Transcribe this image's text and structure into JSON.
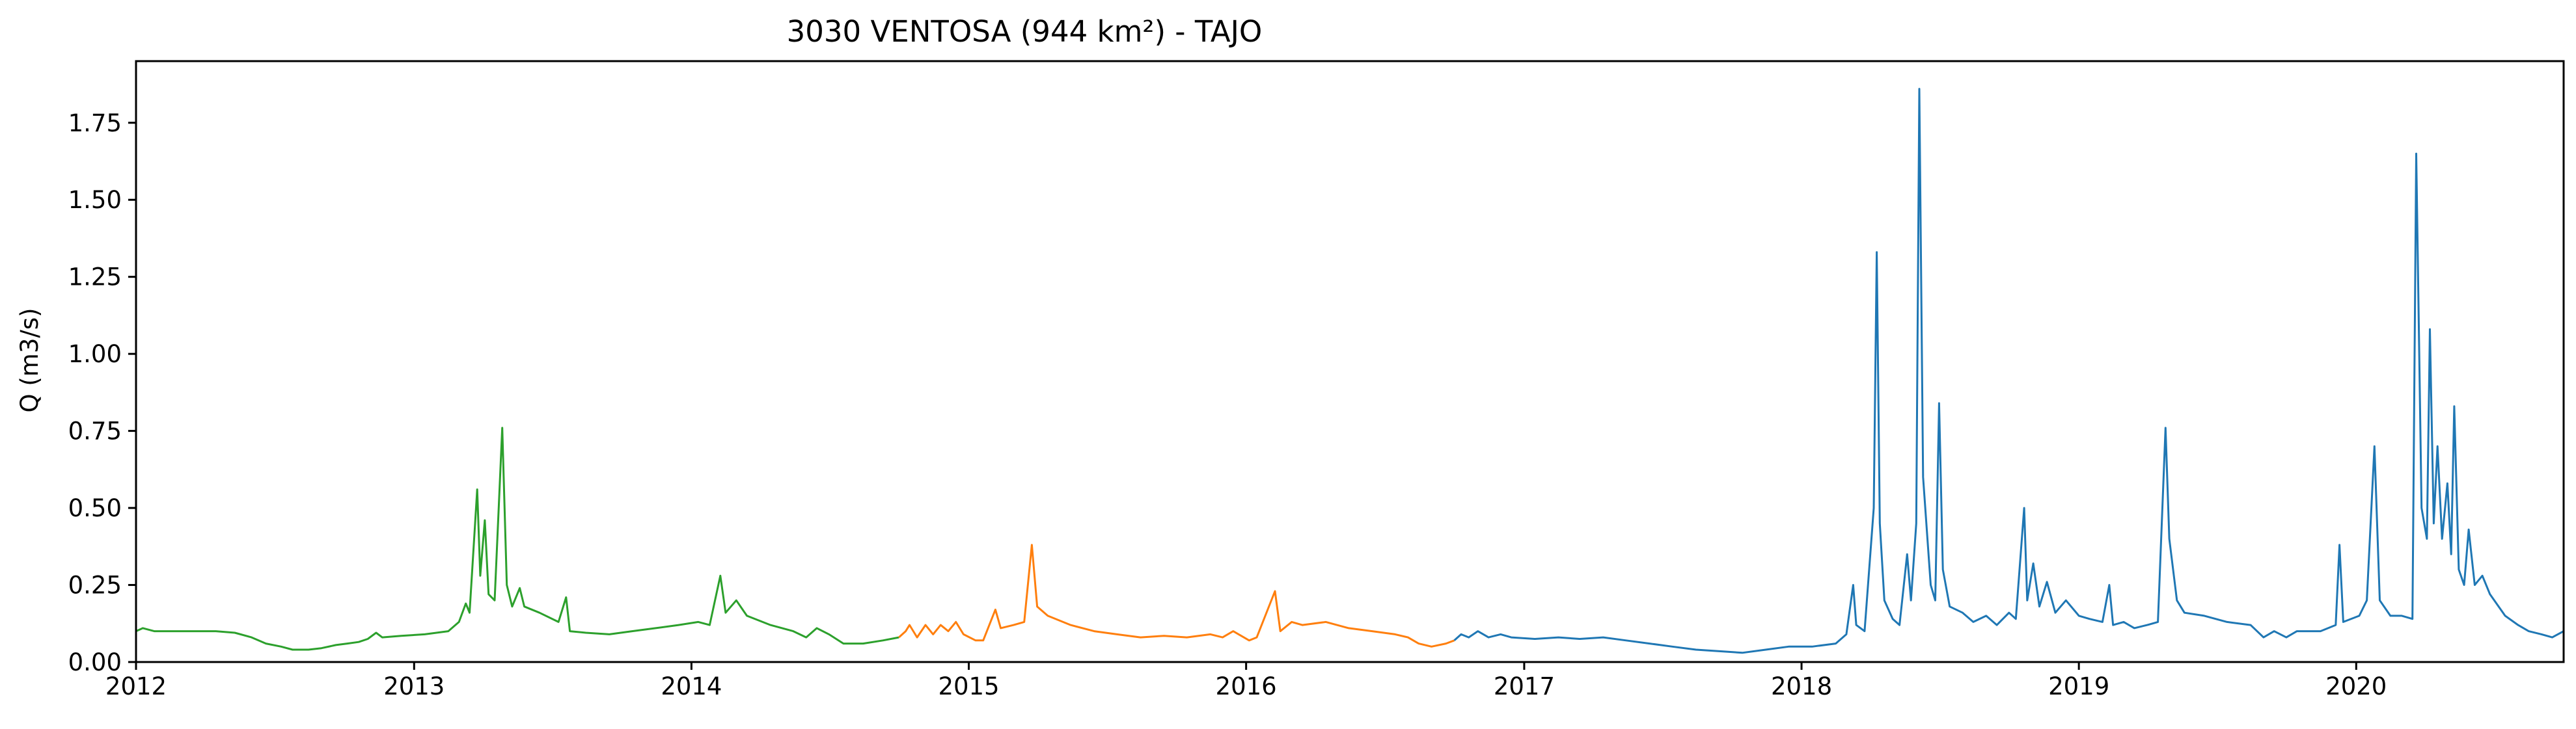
{
  "chart_data": {
    "type": "line",
    "title": "3030 VENTOSA (944 km²) - TAJO",
    "xlabel": "",
    "ylabel": "Q (m3/s)",
    "x_type": "date",
    "xlim": [
      "2012-01-01",
      "2020-09-30"
    ],
    "ylim": [
      0,
      1.95
    ],
    "x_ticks": [
      "2012",
      "2013",
      "2014",
      "2015",
      "2016",
      "2017",
      "2018",
      "2019",
      "2020"
    ],
    "y_ticks": [
      "0.00",
      "0.25",
      "0.50",
      "0.75",
      "1.00",
      "1.25",
      "1.50",
      "1.75"
    ],
    "grid": false,
    "legend": false,
    "series": [
      {
        "color": "#2ca02c",
        "points": [
          [
            "2012-01-01",
            0.1
          ],
          [
            "2012-01-10",
            0.11
          ],
          [
            "2012-01-25",
            0.1
          ],
          [
            "2012-02-15",
            0.1
          ],
          [
            "2012-03-15",
            0.1
          ],
          [
            "2012-04-15",
            0.1
          ],
          [
            "2012-05-10",
            0.095
          ],
          [
            "2012-06-01",
            0.08
          ],
          [
            "2012-06-20",
            0.06
          ],
          [
            "2012-07-10",
            0.05
          ],
          [
            "2012-07-25",
            0.04
          ],
          [
            "2012-08-15",
            0.04
          ],
          [
            "2012-09-01",
            0.045
          ],
          [
            "2012-09-20",
            0.055
          ],
          [
            "2012-10-05",
            0.06
          ],
          [
            "2012-10-20",
            0.065
          ],
          [
            "2012-11-01",
            0.075
          ],
          [
            "2012-11-12",
            0.095
          ],
          [
            "2012-11-20",
            0.08
          ],
          [
            "2012-12-15",
            0.085
          ],
          [
            "2013-01-15",
            0.09
          ],
          [
            "2013-02-15",
            0.1
          ],
          [
            "2013-03-01",
            0.13
          ],
          [
            "2013-03-10",
            0.19
          ],
          [
            "2013-03-15",
            0.16
          ],
          [
            "2013-03-25",
            0.56
          ],
          [
            "2013-03-29",
            0.28
          ],
          [
            "2013-04-04",
            0.46
          ],
          [
            "2013-04-09",
            0.22
          ],
          [
            "2013-04-17",
            0.2
          ],
          [
            "2013-04-27",
            0.76
          ],
          [
            "2013-05-03",
            0.25
          ],
          [
            "2013-05-10",
            0.18
          ],
          [
            "2013-05-20",
            0.24
          ],
          [
            "2013-05-26",
            0.18
          ],
          [
            "2013-06-15",
            0.16
          ],
          [
            "2013-07-10",
            0.13
          ],
          [
            "2013-07-20",
            0.21
          ],
          [
            "2013-07-25",
            0.1
          ],
          [
            "2013-08-15",
            0.095
          ],
          [
            "2013-09-15",
            0.09
          ],
          [
            "2013-10-15",
            0.1
          ],
          [
            "2013-11-15",
            0.11
          ],
          [
            "2013-12-15",
            0.12
          ],
          [
            "2014-01-10",
            0.13
          ],
          [
            "2014-01-25",
            0.12
          ],
          [
            "2014-02-08",
            0.28
          ],
          [
            "2014-02-15",
            0.16
          ],
          [
            "2014-03-01",
            0.2
          ],
          [
            "2014-03-15",
            0.15
          ],
          [
            "2014-04-15",
            0.12
          ],
          [
            "2014-05-15",
            0.1
          ],
          [
            "2014-06-01",
            0.08
          ],
          [
            "2014-06-15",
            0.11
          ],
          [
            "2014-07-01",
            0.09
          ],
          [
            "2014-07-20",
            0.06
          ],
          [
            "2014-08-15",
            0.06
          ],
          [
            "2014-09-10",
            0.07
          ],
          [
            "2014-10-01",
            0.08
          ]
        ]
      },
      {
        "color": "#ff7f0e",
        "points": [
          [
            "2014-10-01",
            0.08
          ],
          [
            "2014-10-10",
            0.1
          ],
          [
            "2014-10-15",
            0.12
          ],
          [
            "2014-10-25",
            0.08
          ],
          [
            "2014-11-05",
            0.12
          ],
          [
            "2014-11-15",
            0.09
          ],
          [
            "2014-11-25",
            0.12
          ],
          [
            "2014-12-05",
            0.1
          ],
          [
            "2014-12-15",
            0.13
          ],
          [
            "2014-12-25",
            0.09
          ],
          [
            "2015-01-10",
            0.07
          ],
          [
            "2015-01-20",
            0.07
          ],
          [
            "2015-02-05",
            0.17
          ],
          [
            "2015-02-12",
            0.11
          ],
          [
            "2015-03-01",
            0.12
          ],
          [
            "2015-03-15",
            0.13
          ],
          [
            "2015-03-25",
            0.38
          ],
          [
            "2015-04-01",
            0.18
          ],
          [
            "2015-04-15",
            0.15
          ],
          [
            "2015-05-15",
            0.12
          ],
          [
            "2015-06-15",
            0.1
          ],
          [
            "2015-07-15",
            0.09
          ],
          [
            "2015-08-15",
            0.08
          ],
          [
            "2015-09-15",
            0.085
          ],
          [
            "2015-10-15",
            0.08
          ],
          [
            "2015-11-15",
            0.09
          ],
          [
            "2015-12-01",
            0.08
          ],
          [
            "2015-12-15",
            0.1
          ],
          [
            "2016-01-05",
            0.07
          ],
          [
            "2016-01-15",
            0.08
          ],
          [
            "2016-02-08",
            0.23
          ],
          [
            "2016-02-15",
            0.1
          ],
          [
            "2016-03-01",
            0.13
          ],
          [
            "2016-03-15",
            0.12
          ],
          [
            "2016-04-15",
            0.13
          ],
          [
            "2016-05-15",
            0.11
          ],
          [
            "2016-06-15",
            0.1
          ],
          [
            "2016-07-15",
            0.09
          ],
          [
            "2016-08-01",
            0.08
          ],
          [
            "2016-08-15",
            0.06
          ],
          [
            "2016-09-01",
            0.05
          ],
          [
            "2016-09-20",
            0.06
          ],
          [
            "2016-10-01",
            0.07
          ]
        ]
      },
      {
        "color": "#1f77b4",
        "points": [
          [
            "2016-10-01",
            0.07
          ],
          [
            "2016-10-10",
            0.09
          ],
          [
            "2016-10-20",
            0.08
          ],
          [
            "2016-11-01",
            0.1
          ],
          [
            "2016-11-15",
            0.08
          ],
          [
            "2016-12-01",
            0.09
          ],
          [
            "2016-12-15",
            0.08
          ],
          [
            "2017-01-15",
            0.075
          ],
          [
            "2017-02-15",
            0.08
          ],
          [
            "2017-03-15",
            0.075
          ],
          [
            "2017-04-15",
            0.08
          ],
          [
            "2017-05-15",
            0.07
          ],
          [
            "2017-06-15",
            0.06
          ],
          [
            "2017-07-15",
            0.05
          ],
          [
            "2017-08-15",
            0.04
          ],
          [
            "2017-09-15",
            0.035
          ],
          [
            "2017-10-15",
            0.03
          ],
          [
            "2017-11-15",
            0.04
          ],
          [
            "2017-12-15",
            0.05
          ],
          [
            "2018-01-15",
            0.05
          ],
          [
            "2018-02-15",
            0.06
          ],
          [
            "2018-03-01",
            0.09
          ],
          [
            "2018-03-10",
            0.25
          ],
          [
            "2018-03-14",
            0.12
          ],
          [
            "2018-03-25",
            0.1
          ],
          [
            "2018-04-06",
            0.5
          ],
          [
            "2018-04-10",
            1.33
          ],
          [
            "2018-04-14",
            0.45
          ],
          [
            "2018-04-20",
            0.2
          ],
          [
            "2018-05-01",
            0.14
          ],
          [
            "2018-05-10",
            0.12
          ],
          [
            "2018-05-20",
            0.35
          ],
          [
            "2018-05-25",
            0.2
          ],
          [
            "2018-06-01",
            0.45
          ],
          [
            "2018-06-05",
            1.86
          ],
          [
            "2018-06-10",
            0.6
          ],
          [
            "2018-06-20",
            0.25
          ],
          [
            "2018-06-26",
            0.2
          ],
          [
            "2018-07-01",
            0.84
          ],
          [
            "2018-07-06",
            0.3
          ],
          [
            "2018-07-15",
            0.18
          ],
          [
            "2018-08-01",
            0.16
          ],
          [
            "2018-08-15",
            0.13
          ],
          [
            "2018-09-01",
            0.15
          ],
          [
            "2018-09-15",
            0.12
          ],
          [
            "2018-10-01",
            0.16
          ],
          [
            "2018-10-10",
            0.14
          ],
          [
            "2018-10-21",
            0.5
          ],
          [
            "2018-10-25",
            0.2
          ],
          [
            "2018-11-02",
            0.32
          ],
          [
            "2018-11-10",
            0.18
          ],
          [
            "2018-11-20",
            0.26
          ],
          [
            "2018-12-01",
            0.16
          ],
          [
            "2018-12-15",
            0.2
          ],
          [
            "2019-01-01",
            0.15
          ],
          [
            "2019-01-15",
            0.14
          ],
          [
            "2019-02-01",
            0.13
          ],
          [
            "2019-02-10",
            0.25
          ],
          [
            "2019-02-15",
            0.12
          ],
          [
            "2019-03-01",
            0.13
          ],
          [
            "2019-03-15",
            0.11
          ],
          [
            "2019-04-01",
            0.12
          ],
          [
            "2019-04-15",
            0.13
          ],
          [
            "2019-04-25",
            0.76
          ],
          [
            "2019-04-30",
            0.4
          ],
          [
            "2019-05-10",
            0.2
          ],
          [
            "2019-05-20",
            0.16
          ],
          [
            "2019-06-15",
            0.15
          ],
          [
            "2019-07-15",
            0.13
          ],
          [
            "2019-08-15",
            0.12
          ],
          [
            "2019-09-01",
            0.08
          ],
          [
            "2019-09-15",
            0.1
          ],
          [
            "2019-10-01",
            0.08
          ],
          [
            "2019-10-15",
            0.1
          ],
          [
            "2019-11-15",
            0.1
          ],
          [
            "2019-12-05",
            0.12
          ],
          [
            "2019-12-10",
            0.38
          ],
          [
            "2019-12-15",
            0.13
          ],
          [
            "2020-01-05",
            0.15
          ],
          [
            "2020-01-15",
            0.2
          ],
          [
            "2020-01-25",
            0.7
          ],
          [
            "2020-02-01",
            0.2
          ],
          [
            "2020-02-15",
            0.15
          ],
          [
            "2020-03-01",
            0.15
          ],
          [
            "2020-03-15",
            0.14
          ],
          [
            "2020-03-20",
            1.65
          ],
          [
            "2020-03-27",
            0.5
          ],
          [
            "2020-04-03",
            0.4
          ],
          [
            "2020-04-07",
            1.08
          ],
          [
            "2020-04-12",
            0.45
          ],
          [
            "2020-04-17",
            0.7
          ],
          [
            "2020-04-23",
            0.4
          ],
          [
            "2020-04-30",
            0.58
          ],
          [
            "2020-05-05",
            0.35
          ],
          [
            "2020-05-09",
            0.83
          ],
          [
            "2020-05-15",
            0.3
          ],
          [
            "2020-05-22",
            0.25
          ],
          [
            "2020-05-28",
            0.43
          ],
          [
            "2020-06-05",
            0.25
          ],
          [
            "2020-06-15",
            0.28
          ],
          [
            "2020-06-25",
            0.22
          ],
          [
            "2020-07-15",
            0.15
          ],
          [
            "2020-08-01",
            0.12
          ],
          [
            "2020-08-15",
            0.1
          ],
          [
            "2020-09-01",
            0.09
          ],
          [
            "2020-09-15",
            0.08
          ],
          [
            "2020-09-30",
            0.1
          ]
        ]
      }
    ]
  }
}
